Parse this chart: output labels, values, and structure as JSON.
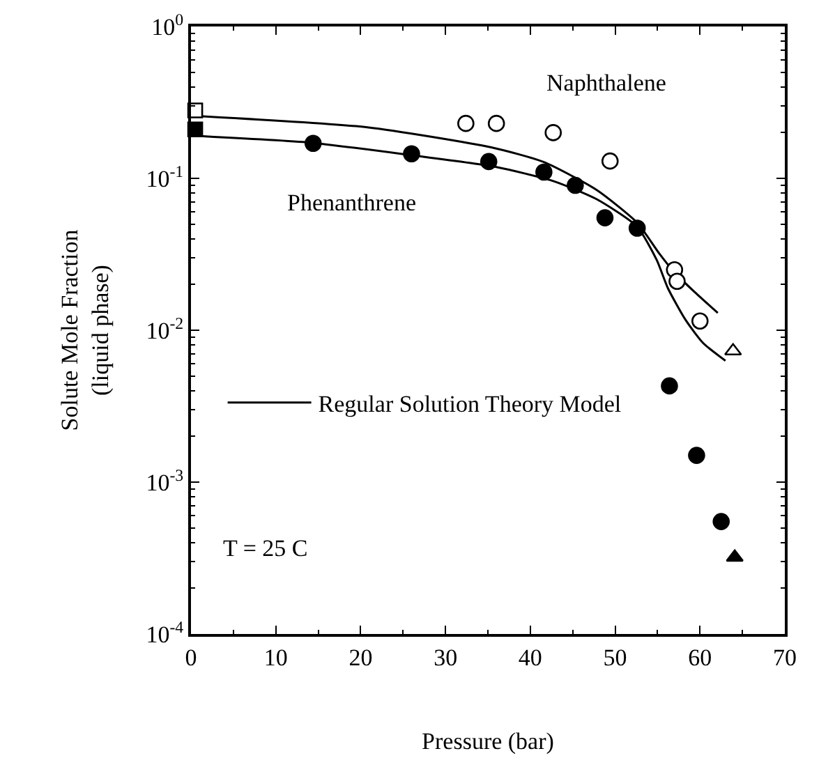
{
  "chart_data": {
    "type": "scatter",
    "xlabel": "Pressure (bar)",
    "ylabel": "Solute Mole Fraction\n(liquid phase)",
    "log": "y",
    "xlim": [
      0,
      70
    ],
    "xticks": [
      0,
      10,
      20,
      30,
      40,
      50,
      60,
      70
    ],
    "ylim": [
      0.0001,
      1
    ],
    "yticks": [
      {
        "value": 0.0001,
        "label": "10$^{-4}$"
      },
      {
        "value": 0.001,
        "label": "10$^{-3}$"
      },
      {
        "value": 0.01,
        "label": "10$^{-2}$"
      },
      {
        "value": 0.1,
        "label": "10$^{-1}$"
      },
      {
        "value": 1,
        "label": "10$^{0}$"
      }
    ],
    "grid": false,
    "legend": "left",
    "series": [
      {
        "name": "Regular Solution Theory Model",
        "type": "line",
        "color": "#000000",
        "marker": "none",
        "line_style": "solid",
        "x": [
          0,
          14,
          26,
          35.9,
          42.7,
          47.8,
          52.6,
          54.9,
          56.2,
          58.3,
          60.4,
          63
        ],
        "values": [
          0.191,
          0.172,
          0.142,
          0.119,
          0.096,
          0.073,
          0.048,
          0.029,
          0.019,
          0.0117,
          0.0082,
          0.0063
        ]
      },
      {
        "type": "line",
        "color": "#000000",
        "marker": "none",
        "line_style": "solid",
        "x": [
          0,
          20.8,
          35.4,
          41.6,
          47.8,
          52.6,
          55.2,
          57,
          59.3,
          62.1
        ],
        "values": [
          0.259,
          0.217,
          0.16,
          0.128,
          0.084,
          0.051,
          0.032,
          0.024,
          0.018,
          0.013
        ]
      },
      {
        "color": "#ffffff",
        "marker": "circle",
        "x": [
          32.4,
          36,
          42.7,
          49.4,
          57,
          57.3,
          60
        ],
        "values": [
          0.23,
          0.23,
          0.2,
          0.13,
          0.025,
          0.021,
          0.0115
        ]
      },
      {
        "color": "#ffffff",
        "marker": "square",
        "x": [
          0.5
        ],
        "values": [
          0.28
        ]
      },
      {
        "color": "#ffffff",
        "marker": "triangle",
        "x": [
          63.9
        ],
        "values": [
          0.0073
        ]
      },
      {
        "color": "#000000",
        "marker": "circle",
        "x": [
          14.4,
          26,
          35.1,
          41.6,
          45.3,
          48.8,
          52.6,
          56.4,
          59.6,
          62.5
        ],
        "values": [
          0.17,
          0.145,
          0.129,
          0.11,
          0.09,
          0.055,
          0.047,
          0.0043,
          0.0015,
          0.00055
        ]
      },
      {
        "color": "#000000",
        "marker": "square",
        "x": [
          0.5
        ],
        "values": [
          0.21
        ]
      },
      {
        "color": "#000000",
        "marker": "triangle",
        "x": [
          64.1
        ],
        "values": [
          0.00032
        ]
      }
    ],
    "annotations": [
      "Naphthalene",
      "Phenanthrene",
      "T = 25 C"
    ]
  }
}
